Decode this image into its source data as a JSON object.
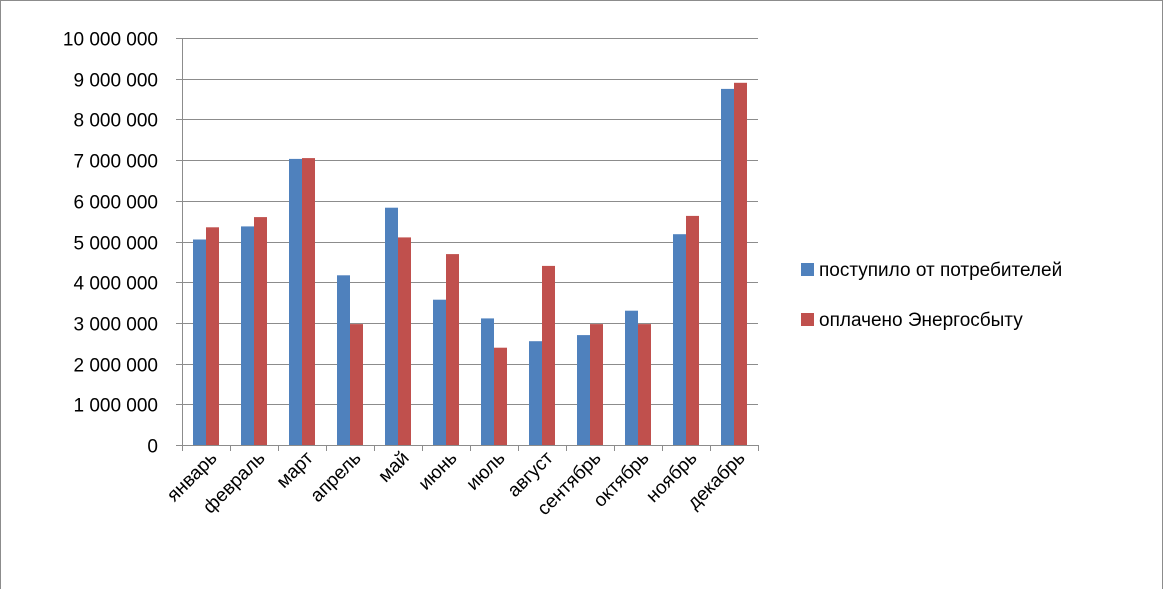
{
  "chart_data": {
    "type": "bar",
    "title": "",
    "xlabel": "",
    "ylabel": "",
    "categories": [
      "январь",
      "февраль",
      "март",
      "апрель",
      "май",
      "июнь",
      "июль",
      "август",
      "сентябрь",
      "октябрь",
      "ноябрь",
      "декабрь"
    ],
    "series": [
      {
        "name": "поступило от потребителей",
        "color": "#4f81bd",
        "values": [
          5050000,
          5370000,
          7030000,
          4170000,
          5830000,
          3570000,
          3110000,
          2550000,
          2700000,
          3300000,
          5180000,
          8750000
        ]
      },
      {
        "name": "оплачено Энергосбыту",
        "color": "#c0504d",
        "values": [
          5350000,
          5600000,
          7050000,
          2970000,
          5100000,
          4690000,
          2390000,
          4400000,
          2970000,
          2970000,
          5630000,
          8900000
        ]
      }
    ],
    "ylim": [
      0,
      10000000
    ],
    "yticks": [
      0,
      1000000,
      2000000,
      3000000,
      4000000,
      5000000,
      6000000,
      7000000,
      8000000,
      9000000,
      10000000
    ],
    "ytick_labels": [
      "0",
      "1 000 000",
      "2 000 000",
      "3 000 000",
      "4 000 000",
      "5 000 000",
      "6 000 000",
      "7 000 000",
      "8 000 000",
      "9 000 000",
      "10 000 000"
    ],
    "grid": true,
    "legend_position": "right"
  }
}
